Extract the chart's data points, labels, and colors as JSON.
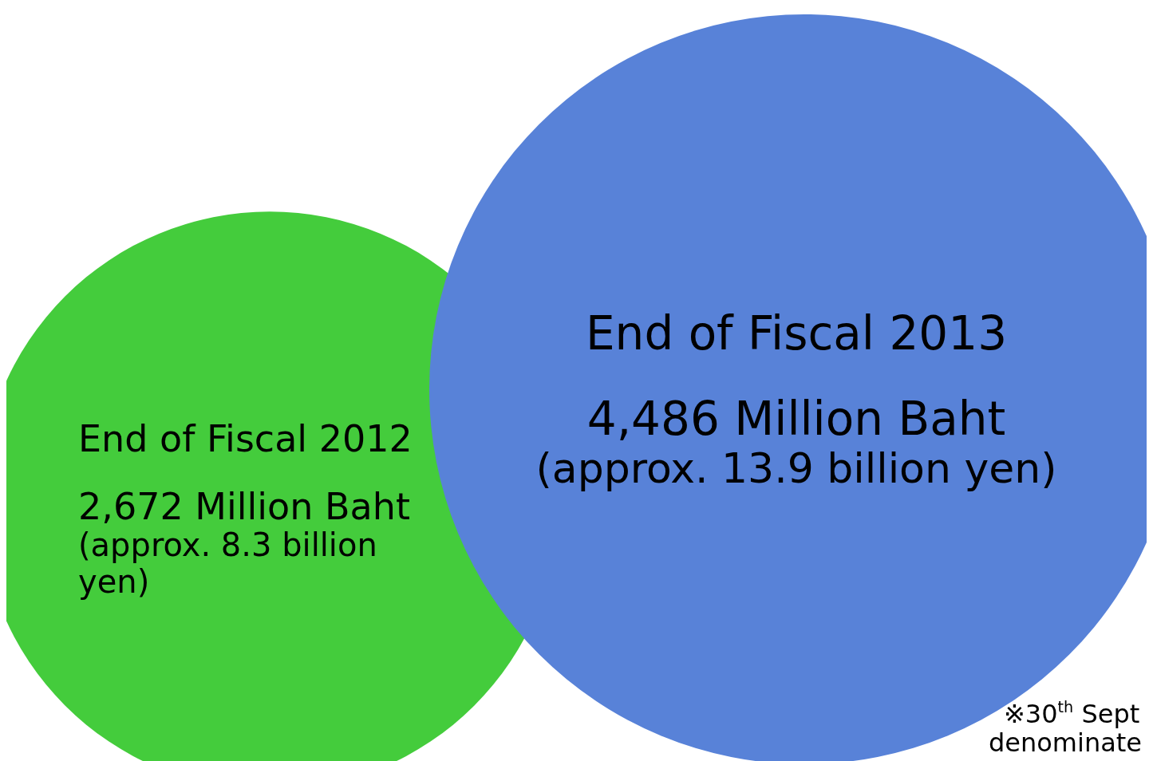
{
  "chart_data": {
    "type": "other",
    "categories": [
      "End of Fiscal 2012",
      "End of Fiscal 2013"
    ],
    "values": [
      2672,
      4486
    ],
    "value_labels": [
      "2,672 Million Baht",
      "4,486 Million Baht"
    ],
    "colors": [
      "#44cc3c",
      "#5882d8"
    ],
    "annotations": [
      "(approx. 8.3 billion yen)",
      "(approx. 13.9 billion yen)",
      "※30$^{th}$ Sept",
      "denominate"
    ]
  }
}
